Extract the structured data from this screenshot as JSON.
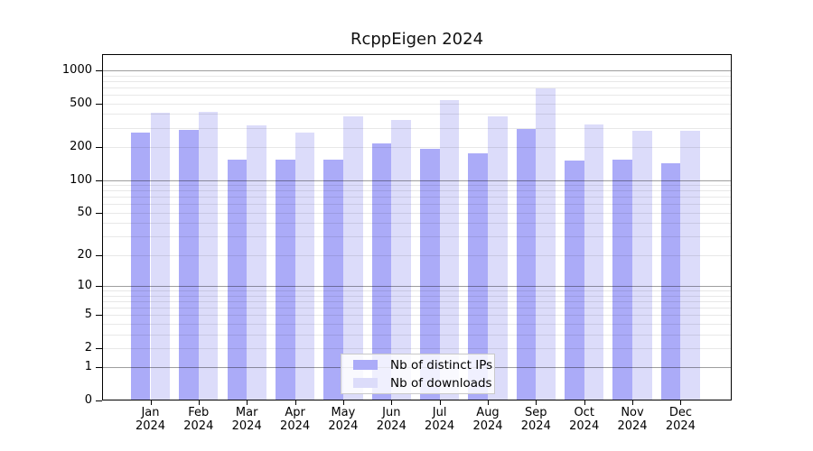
{
  "title": "RcppEigen 2024",
  "chart_data": {
    "type": "bar",
    "title": "RcppEigen 2024",
    "categories": [
      "Jan",
      "Feb",
      "Mar",
      "Apr",
      "May",
      "Jun",
      "Jul",
      "Aug",
      "Sep",
      "Oct",
      "Nov",
      "Dec"
    ],
    "year_label": "2024",
    "series": [
      {
        "name": "Nb of distinct IPs",
        "color": "#ababf8",
        "values": [
          271,
          287,
          154,
          154,
          154,
          216,
          193,
          175,
          291,
          151,
          154,
          142
        ]
      },
      {
        "name": "Nb of downloads",
        "color": "#dcdcfa",
        "values": [
          411,
          419,
          313,
          271,
          379,
          355,
          539,
          379,
          681,
          323,
          282,
          282
        ]
      }
    ],
    "xlabel": "",
    "ylabel": "",
    "y_axis": {
      "scale": "log1p",
      "ticks": [
        0,
        1,
        2,
        5,
        10,
        20,
        50,
        100,
        200,
        500,
        1000
      ],
      "major_gridlines": [
        1,
        10,
        100,
        1000
      ],
      "minor_gridline_multiples": [
        2,
        3,
        4,
        5,
        6,
        7,
        8,
        9
      ],
      "range": [
        0,
        1000
      ]
    },
    "grid": true,
    "legend_position": "bottom-center"
  }
}
